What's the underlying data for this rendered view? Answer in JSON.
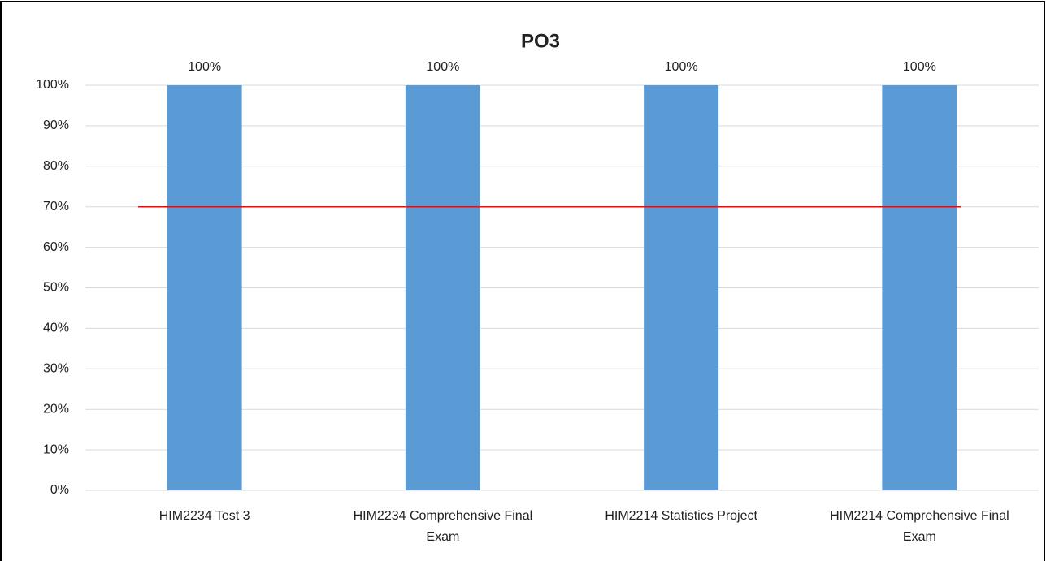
{
  "chart_data": {
    "type": "bar",
    "title": "PO3",
    "categories": [
      "HIM2234 Test 3",
      "HIM2234 Comprehensive Final Exam",
      "HIM2214 Statistics Project",
      "HIM2214 Comprehensive Final Exam"
    ],
    "values": [
      100,
      100,
      100,
      100
    ],
    "value_labels": [
      "100%",
      "100%",
      "100%",
      "100%"
    ],
    "color": "#5b9bd5",
    "ylim": [
      0,
      100
    ],
    "yticks": [
      {
        "value": 0,
        "label": "0%"
      },
      {
        "value": 10,
        "label": "10%"
      },
      {
        "value": 20,
        "label": "20%"
      },
      {
        "value": 30,
        "label": "30%"
      },
      {
        "value": 40,
        "label": "40%"
      },
      {
        "value": 50,
        "label": "50%"
      },
      {
        "value": 60,
        "label": "60%"
      },
      {
        "value": 70,
        "label": "70%"
      },
      {
        "value": 80,
        "label": "80%"
      },
      {
        "value": 90,
        "label": "90%"
      },
      {
        "value": 100,
        "label": "100%"
      }
    ],
    "grid": true,
    "target_line": {
      "value": 70,
      "color": "#ff0000"
    }
  }
}
